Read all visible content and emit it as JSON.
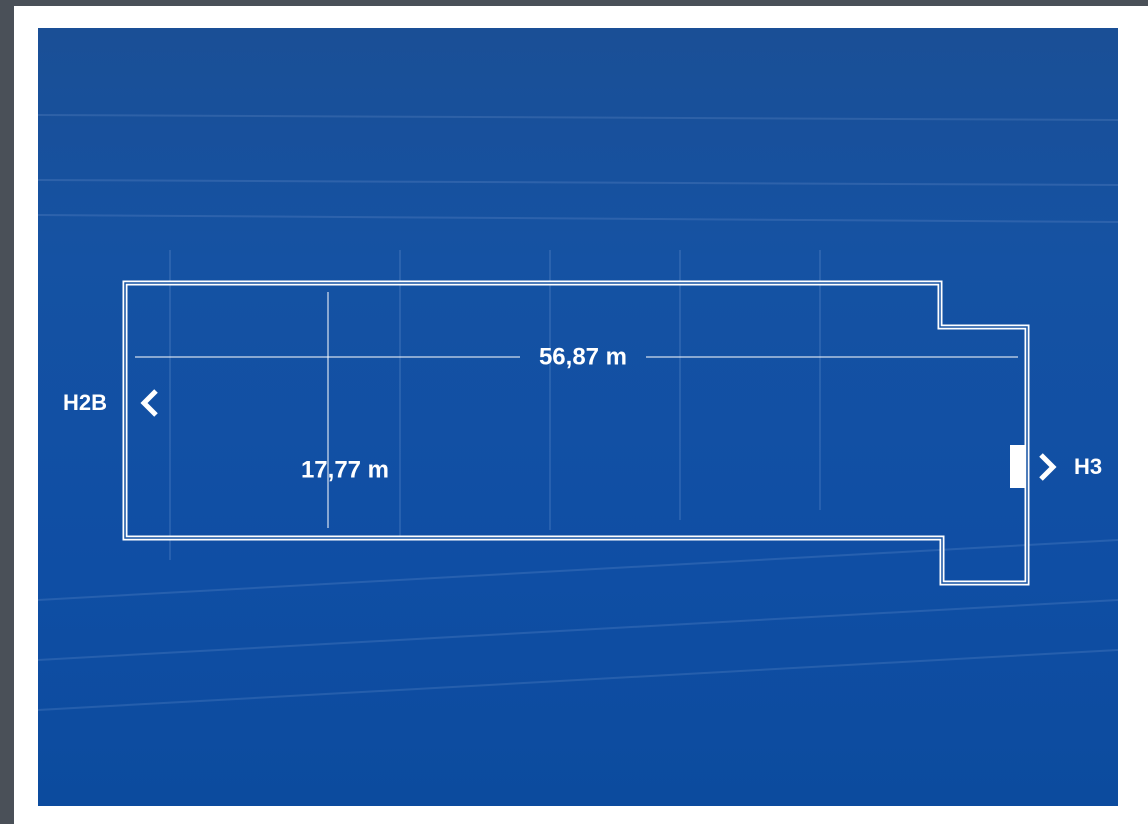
{
  "plan": {
    "width_label": "56,87 m",
    "depth_label": "17,77 m",
    "exits": [
      {
        "label": "H2B"
      },
      {
        "label": "H3"
      }
    ]
  }
}
